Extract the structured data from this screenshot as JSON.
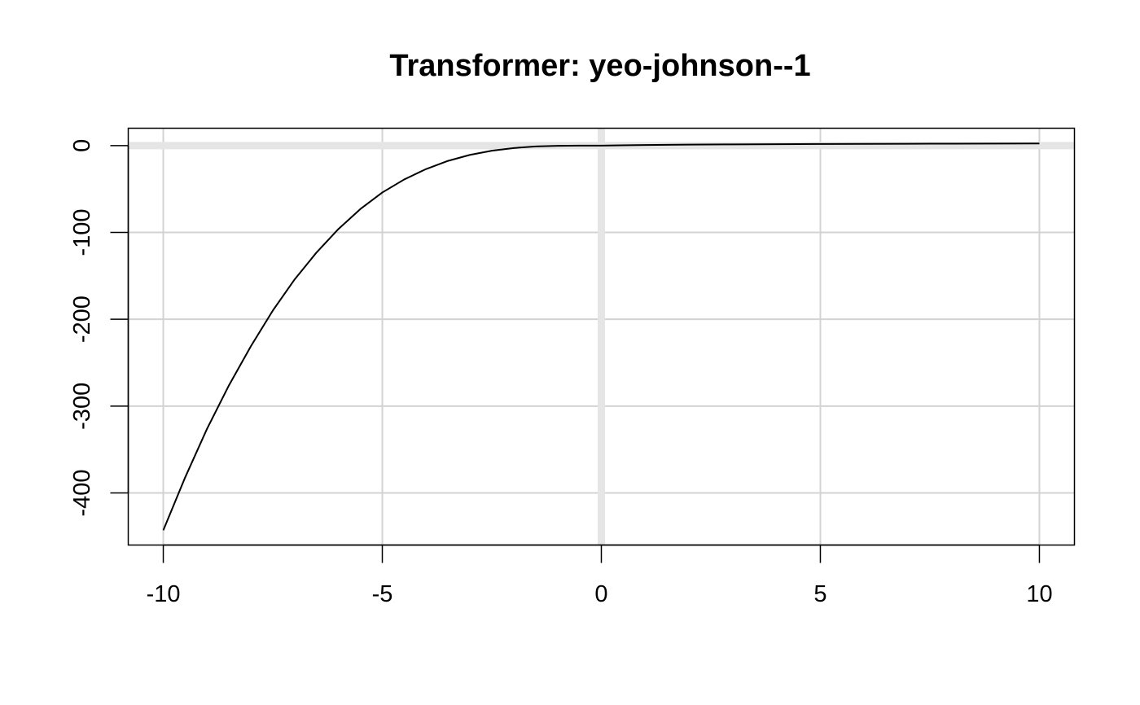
{
  "chart_data": {
    "type": "line",
    "title": "Transformer: yeo-johnson--1",
    "xlabel": "",
    "ylabel": "",
    "xlim": [
      -10.8,
      10.8
    ],
    "ylim": [
      -460,
      20
    ],
    "x_ticks": [
      -10,
      -5,
      0,
      5,
      10
    ],
    "x_tick_labels": [
      "-10",
      "-5",
      "0",
      "5",
      "10"
    ],
    "y_ticks": [
      0,
      -100,
      -200,
      -300,
      -400
    ],
    "y_tick_labels": [
      "0",
      "-100",
      "-200",
      "-300",
      "-400"
    ],
    "grid": true,
    "reference_lines": {
      "x": 0,
      "y": 0
    },
    "series": [
      {
        "x": [
          -10,
          -9.5,
          -9,
          -8.5,
          -8,
          -7.5,
          -7,
          -6.5,
          -6,
          -5.5,
          -5,
          -4.5,
          -4,
          -3.5,
          -3,
          -2.5,
          -2,
          -1.5,
          -1,
          -0.5,
          0,
          1,
          2,
          3,
          4,
          5,
          6,
          7,
          8,
          9,
          10
        ],
        "y": [
          -443,
          -382,
          -326,
          -276,
          -231,
          -190,
          -154,
          -123,
          -96,
          -73,
          -54,
          -39,
          -27,
          -17.6,
          -10.7,
          -5.9,
          -2.8,
          -1.0,
          -0.25,
          -0.02,
          0,
          0.69,
          1.1,
          1.39,
          1.61,
          1.79,
          1.95,
          2.08,
          2.2,
          2.3,
          2.4
        ]
      }
    ],
    "colors": {
      "line": "#000000",
      "grid": "#d3d3d3",
      "reference": "#e5e5e5",
      "frame": "#000000"
    }
  }
}
